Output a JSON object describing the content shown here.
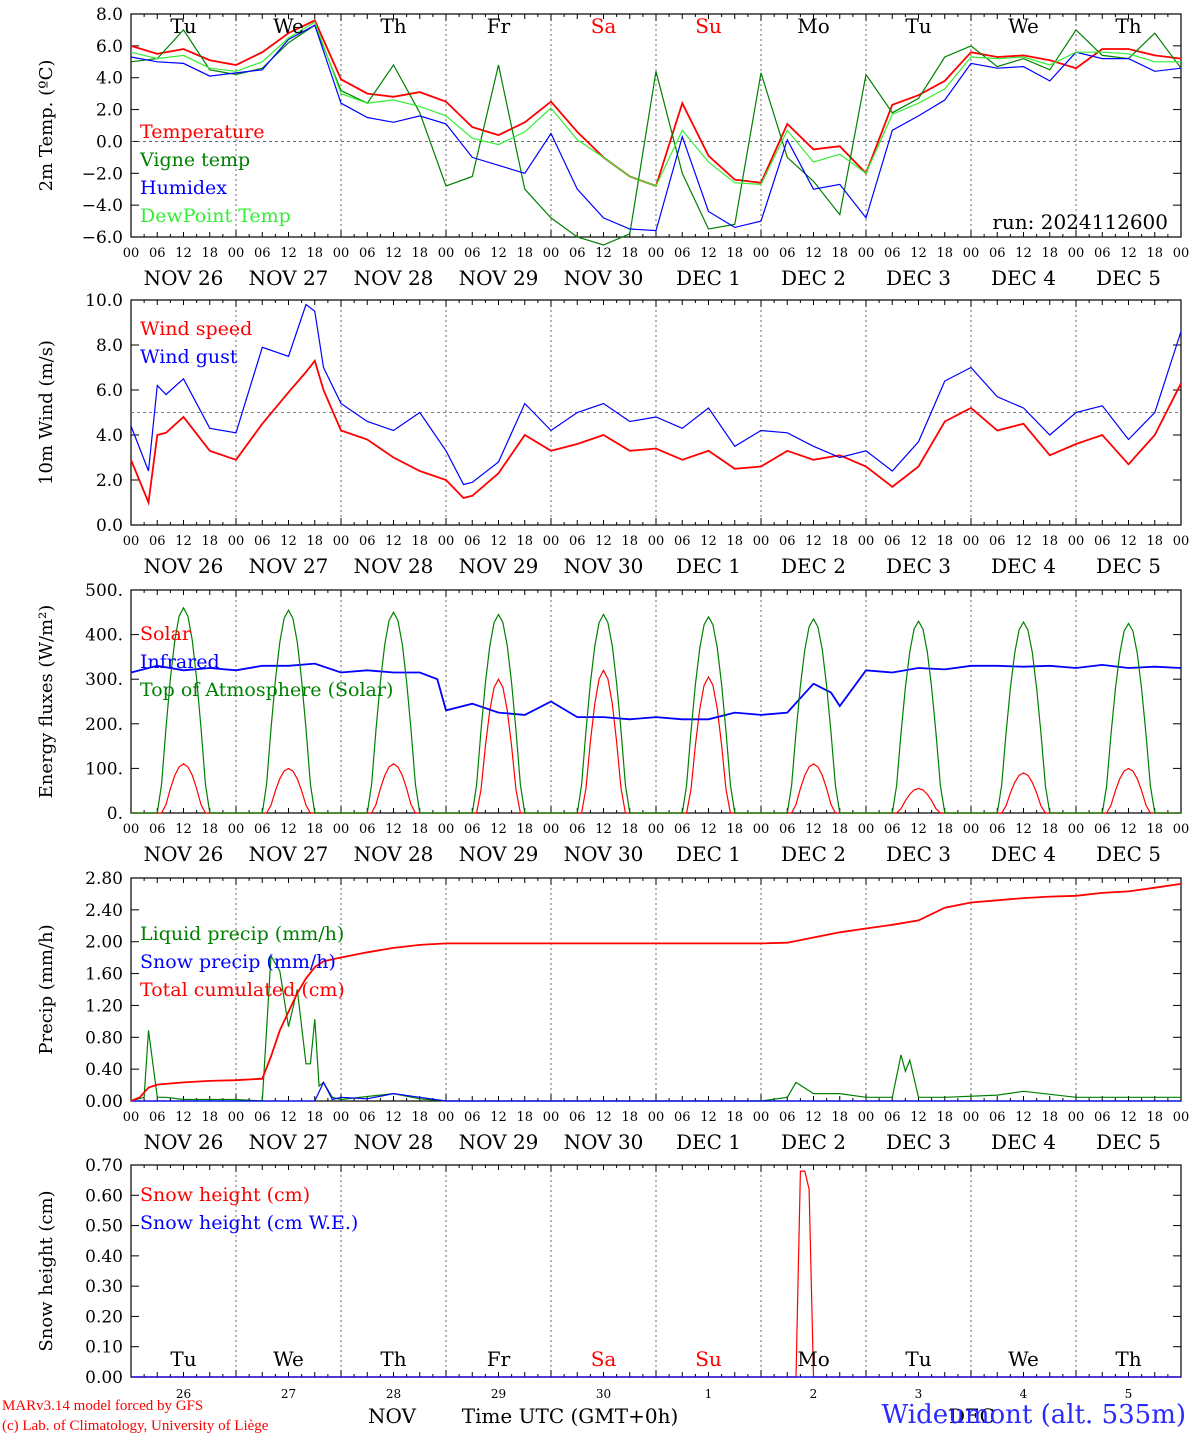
{
  "run_label": "run: 2024112600",
  "footer": {
    "credit_line1": "MARv3.14 model forced by GFS",
    "credit_line2": "(c) Lab. of Climatology, University of Liège",
    "month": "NOV",
    "month2": "DEC",
    "time_axis_label": "Time UTC (GMT+0h)",
    "station": "Wideumont (alt. 535m)"
  },
  "colors": {
    "red": "#ff0000",
    "dark_green": "#008000",
    "blue": "#0000ff",
    "light_green": "#33ee33",
    "weekend": "#ff0000",
    "weekday": "#000000"
  },
  "hour_ticks": [
    "00",
    "06",
    "12",
    "18"
  ],
  "days": [
    {
      "abbr": "Tu",
      "date": "NOV 26",
      "num": "26",
      "weekend": false
    },
    {
      "abbr": "We",
      "date": "NOV 27",
      "num": "27",
      "weekend": false
    },
    {
      "abbr": "Th",
      "date": "NOV 28",
      "num": "28",
      "weekend": false
    },
    {
      "abbr": "Fr",
      "date": "NOV 29",
      "num": "29",
      "weekend": false
    },
    {
      "abbr": "Sa",
      "date": "NOV 30",
      "num": "30",
      "weekend": true
    },
    {
      "abbr": "Su",
      "date": "DEC  1",
      "num": "1",
      "weekend": true
    },
    {
      "abbr": "Mo",
      "date": "DEC  2",
      "num": "2",
      "weekend": false
    },
    {
      "abbr": "Tu",
      "date": "DEC  3",
      "num": "3",
      "weekend": false
    },
    {
      "abbr": "We",
      "date": "DEC  4",
      "num": "4",
      "weekend": false
    },
    {
      "abbr": "Th",
      "date": "DEC  5",
      "num": "5",
      "weekend": false
    }
  ],
  "chart_data": [
    {
      "type": "line",
      "ylabel": "2m Temp. (ºC)",
      "ylim": [
        -6,
        8
      ],
      "yticks": [
        "−6.0",
        "−4.0",
        "−2.0",
        "0.0",
        "2.0",
        "4.0",
        "6.0",
        "8.0"
      ],
      "reference_line": 0,
      "x_units": "hours since NOV 26 00 UTC",
      "series": [
        {
          "name": "Temperature",
          "color": "red",
          "x": [
            0,
            6,
            12,
            18,
            24,
            30,
            36,
            42,
            48,
            54,
            60,
            66,
            72,
            78,
            84,
            90,
            96,
            102,
            108,
            114,
            120,
            126,
            132,
            138,
            144,
            150,
            156,
            162,
            168,
            174,
            180,
            186,
            192,
            198,
            204,
            210,
            216,
            222,
            228,
            234,
            240
          ],
          "y": [
            6.0,
            5.5,
            5.8,
            5.1,
            4.8,
            5.6,
            6.8,
            7.6,
            3.9,
            3.0,
            2.8,
            3.1,
            2.5,
            0.9,
            0.4,
            1.2,
            2.5,
            0.6,
            -1.0,
            -2.2,
            -2.8,
            2.4,
            -0.9,
            -2.4,
            -2.6,
            1.1,
            -0.5,
            -0.3,
            -2.0,
            2.3,
            2.9,
            3.8,
            5.6,
            5.3,
            5.4,
            5.1,
            4.6,
            5.8,
            5.8,
            5.4,
            5.2
          ]
        },
        {
          "name": "Vigne temp",
          "color": "dark_green",
          "x": [
            0,
            6,
            12,
            18,
            24,
            30,
            36,
            42,
            48,
            54,
            60,
            66,
            72,
            78,
            84,
            90,
            96,
            102,
            108,
            114,
            120,
            126,
            132,
            138,
            144,
            150,
            156,
            162,
            168,
            174,
            180,
            186,
            192,
            198,
            204,
            210,
            216,
            222,
            228,
            234,
            240
          ],
          "y": [
            5.0,
            5.2,
            7.0,
            4.5,
            4.2,
            4.6,
            6.2,
            7.3,
            3.2,
            2.4,
            4.8,
            1.8,
            -2.8,
            -2.2,
            4.8,
            -3.0,
            -4.8,
            -6.0,
            -6.5,
            -5.8,
            4.4,
            -2.0,
            -5.5,
            -5.2,
            4.3,
            -1.0,
            -2.5,
            -4.6,
            4.2,
            1.8,
            2.7,
            5.3,
            6.0,
            4.7,
            5.2,
            4.5,
            7.0,
            5.4,
            5.2,
            6.8,
            4.6
          ]
        },
        {
          "name": "Humidex",
          "color": "blue",
          "x": [
            0,
            6,
            12,
            18,
            24,
            30,
            36,
            42,
            48,
            54,
            60,
            66,
            72,
            78,
            84,
            90,
            96,
            102,
            108,
            114,
            120,
            126,
            132,
            138,
            144,
            150,
            156,
            162,
            168,
            174,
            180,
            186,
            192,
            198,
            204,
            210,
            216,
            222,
            228,
            234,
            240
          ],
          "y": [
            5.3,
            5.0,
            4.9,
            4.1,
            4.3,
            4.5,
            6.4,
            7.3,
            2.4,
            1.5,
            1.2,
            1.6,
            1.1,
            -1.0,
            -1.5,
            -2.0,
            0.5,
            -3.0,
            -4.8,
            -5.5,
            -5.6,
            0.3,
            -4.4,
            -5.4,
            -5.0,
            0.1,
            -3.0,
            -2.7,
            -4.8,
            0.7,
            1.6,
            2.6,
            4.9,
            4.6,
            4.7,
            3.8,
            5.6,
            5.2,
            5.2,
            4.4,
            4.6
          ]
        },
        {
          "name": "DewPoint Temp",
          "color": "light_green",
          "x": [
            0,
            6,
            12,
            18,
            24,
            30,
            36,
            42,
            48,
            54,
            60,
            66,
            72,
            78,
            84,
            90,
            96,
            102,
            108,
            114,
            120,
            126,
            132,
            138,
            144,
            150,
            156,
            162,
            168,
            174,
            180,
            186,
            192,
            198,
            204,
            210,
            216,
            222,
            228,
            234,
            240
          ],
          "y": [
            5.6,
            5.2,
            5.4,
            4.6,
            4.4,
            5.0,
            6.5,
            7.5,
            3.0,
            2.4,
            2.6,
            2.2,
            1.6,
            0.2,
            -0.2,
            0.6,
            2.1,
            0.1,
            -1.0,
            -2.2,
            -2.8,
            0.7,
            -1.3,
            -2.6,
            -2.7,
            0.7,
            -1.3,
            -0.8,
            -2.0,
            1.7,
            2.4,
            3.3,
            5.3,
            5.2,
            5.3,
            4.8,
            5.6,
            5.6,
            5.5,
            5.0,
            5.0
          ]
        }
      ]
    },
    {
      "type": "line",
      "ylabel": "10m Wind (m/s)",
      "ylim": [
        0,
        10
      ],
      "yticks": [
        "0.0",
        "2.0",
        "4.0",
        "6.0",
        "8.0",
        "10.0"
      ],
      "reference_line": 5,
      "x_units": "hours since NOV 26 00 UTC",
      "series": [
        {
          "name": "Wind speed",
          "color": "red",
          "x": [
            0,
            4,
            6,
            8,
            12,
            18,
            24,
            30,
            36,
            40,
            42,
            44,
            48,
            54,
            60,
            66,
            72,
            76,
            78,
            84,
            90,
            96,
            102,
            108,
            114,
            120,
            126,
            132,
            138,
            144,
            150,
            156,
            162,
            168,
            174,
            180,
            186,
            192,
            198,
            204,
            210,
            216,
            222,
            228,
            234,
            240
          ],
          "y": [
            2.9,
            1.0,
            4.0,
            4.1,
            4.8,
            3.3,
            2.9,
            4.5,
            5.9,
            6.8,
            7.3,
            6.0,
            4.2,
            3.8,
            3.0,
            2.4,
            2.0,
            1.2,
            1.3,
            2.3,
            4.0,
            3.3,
            3.6,
            4.0,
            3.3,
            3.4,
            2.9,
            3.3,
            2.5,
            2.6,
            3.3,
            2.9,
            3.1,
            2.6,
            1.7,
            2.6,
            4.6,
            5.2,
            4.2,
            4.5,
            3.1,
            3.6,
            4.0,
            2.7,
            4.0,
            6.3
          ]
        },
        {
          "name": "Wind gust",
          "color": "blue",
          "x": [
            0,
            4,
            6,
            8,
            12,
            18,
            24,
            30,
            36,
            40,
            42,
            44,
            48,
            54,
            60,
            66,
            72,
            76,
            78,
            84,
            90,
            96,
            102,
            108,
            114,
            120,
            126,
            132,
            138,
            144,
            150,
            156,
            162,
            168,
            174,
            180,
            186,
            192,
            198,
            204,
            210,
            216,
            222,
            228,
            234,
            240
          ],
          "y": [
            4.4,
            2.4,
            6.2,
            5.8,
            6.5,
            4.3,
            4.1,
            7.9,
            7.5,
            9.8,
            9.5,
            7.0,
            5.4,
            4.6,
            4.2,
            5.0,
            3.3,
            1.8,
            1.9,
            2.8,
            5.4,
            4.2,
            5.0,
            5.4,
            4.6,
            4.8,
            4.3,
            5.2,
            3.5,
            4.2,
            4.1,
            3.5,
            3.0,
            3.3,
            2.4,
            3.7,
            6.4,
            7.0,
            5.7,
            5.2,
            4.0,
            5.0,
            5.3,
            3.8,
            5.0,
            8.6
          ]
        }
      ]
    },
    {
      "type": "line",
      "ylabel": "Energy fluxes (W/m²)",
      "ylim": [
        0,
        500
      ],
      "yticks": [
        "0.",
        "100.",
        "200.",
        "300.",
        "400.",
        "500."
      ],
      "x_units": "hours since NOV 26 00 UTC",
      "daily_peaks": {
        "Solar": [
          110,
          100,
          110,
          300,
          320,
          305,
          110,
          55,
          90,
          100
        ],
        "Top of Atmosphere (Solar)": [
          460,
          455,
          450,
          445,
          445,
          440,
          435,
          430,
          428,
          425
        ]
      },
      "series": [
        {
          "name": "Solar",
          "color": "red",
          "shape": "daily bell curve, 08–16 UTC"
        },
        {
          "name": "Infrared",
          "color": "blue",
          "x": [
            0,
            6,
            12,
            18,
            24,
            30,
            36,
            42,
            48,
            54,
            60,
            66,
            70,
            72,
            78,
            84,
            90,
            96,
            102,
            108,
            114,
            120,
            126,
            132,
            138,
            144,
            150,
            156,
            160,
            162,
            168,
            174,
            180,
            186,
            192,
            198,
            204,
            210,
            216,
            222,
            228,
            234,
            240
          ],
          "y": [
            315,
            330,
            320,
            325,
            320,
            330,
            330,
            335,
            315,
            320,
            315,
            315,
            300,
            230,
            245,
            225,
            220,
            250,
            215,
            215,
            210,
            215,
            210,
            210,
            225,
            220,
            225,
            290,
            270,
            240,
            320,
            315,
            325,
            322,
            330,
            330,
            328,
            330,
            325,
            332,
            325,
            328,
            325
          ]
        },
        {
          "name": "Top of Atmosphere (Solar)",
          "color": "dark_green",
          "shape": "daily bell curve, 07–17 UTC"
        }
      ]
    },
    {
      "type": "line",
      "ylabel": "Precip (mm/h)",
      "ylim": [
        0,
        3.0
      ],
      "yticks": [
        "0.00",
        "0.40",
        "0.80",
        "1.20",
        "1.60",
        "2.00",
        "2.40",
        "2.80"
      ],
      "x_units": "hours since NOV 26 00 UTC",
      "series": [
        {
          "name": "Liquid precip (mm/h)",
          "color": "dark_green",
          "x": [
            0,
            3,
            4,
            6,
            8,
            12,
            18,
            24,
            30,
            32,
            34,
            36,
            38,
            40,
            41,
            42,
            43,
            44,
            46,
            48,
            54,
            60,
            66,
            72,
            96,
            144,
            150,
            152,
            156,
            162,
            168,
            174,
            176,
            177,
            178,
            180,
            186,
            198,
            204,
            216,
            240
          ],
          "y": [
            0,
            0.05,
            0.95,
            0.05,
            0.05,
            0.02,
            0.02,
            0.02,
            0,
            1.95,
            1.75,
            1.0,
            1.5,
            0.5,
            0.5,
            1.1,
            0.2,
            0.25,
            0.05,
            0.02,
            0.06,
            0.1,
            0.03,
            0,
            0,
            0,
            0.05,
            0.25,
            0.1,
            0.1,
            0.05,
            0.05,
            0.62,
            0.4,
            0.55,
            0.05,
            0.05,
            0.08,
            0.13,
            0.05,
            0.05
          ]
        },
        {
          "name": "Snow precip (mm/h)",
          "color": "blue",
          "x": [
            0,
            42,
            44,
            46,
            48,
            54,
            60,
            66,
            72,
            240
          ],
          "y": [
            0,
            0,
            0.25,
            0.02,
            0.05,
            0.03,
            0.1,
            0.05,
            0,
            0
          ]
        },
        {
          "name": "Total cumulated (cm)",
          "color": "red",
          "x": [
            0,
            2,
            4,
            6,
            12,
            18,
            24,
            30,
            32,
            34,
            36,
            38,
            40,
            42,
            44,
            48,
            54,
            60,
            66,
            72,
            96,
            120,
            144,
            150,
            156,
            162,
            168,
            174,
            180,
            186,
            192,
            198,
            204,
            210,
            216,
            222,
            228,
            234,
            240
          ],
          "y": [
            0,
            0.05,
            0.18,
            0.22,
            0.25,
            0.27,
            0.28,
            0.3,
            0.6,
            0.95,
            1.2,
            1.45,
            1.65,
            1.8,
            1.88,
            1.93,
            2.0,
            2.06,
            2.1,
            2.12,
            2.12,
            2.12,
            2.12,
            2.13,
            2.2,
            2.27,
            2.32,
            2.37,
            2.43,
            2.6,
            2.67,
            2.7,
            2.73,
            2.75,
            2.76,
            2.8,
            2.82,
            2.87,
            2.92
          ]
        }
      ]
    },
    {
      "type": "line",
      "ylabel": "Snow height (cm)",
      "ylim": [
        0,
        0.7
      ],
      "yticks": [
        "0.00",
        "0.10",
        "0.20",
        "0.30",
        "0.40",
        "0.50",
        "0.60",
        "0.70"
      ],
      "x_units": "hours since NOV 26 00 UTC",
      "series": [
        {
          "name": "Snow height (cm)",
          "color": "red",
          "x": [
            0,
            152,
            153,
            154,
            155,
            156,
            240
          ],
          "y": [
            0,
            0,
            0.68,
            0.68,
            0.62,
            0,
            0
          ]
        },
        {
          "name": "Snow height (cm W.E.)",
          "color": "blue",
          "x": [
            0,
            240
          ],
          "y": [
            0,
            0
          ]
        }
      ]
    }
  ]
}
